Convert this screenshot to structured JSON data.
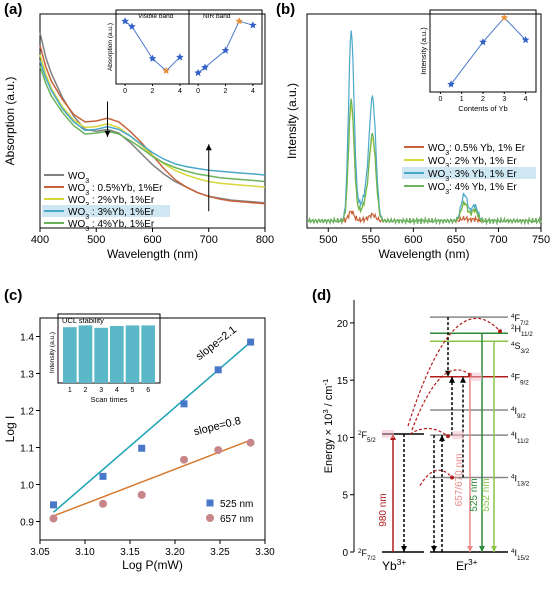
{
  "colors": {
    "wo3": "#808080",
    "yb05": "#c8623a",
    "yb2": "#d6d83c",
    "yb3": "#4aa8c9",
    "yb4": "#6bb35a",
    "star": "#3060c8",
    "star_highlight": "#e8913a",
    "fit_a": "#1ba2b5",
    "fit_b": "#d67a2e",
    "sq": "#4a78c8",
    "circ": "#c9868a",
    "bar": "#5bb8c9",
    "highlight": "#cfe7f3",
    "red": "#b01c1c",
    "green": "#2b8a3a",
    "pink": "#e88a8a",
    "lightgreen": "#8bc34a"
  },
  "chart_data": [
    {
      "id": "a",
      "panel_label": "(a)",
      "type": "line",
      "xlabel": "Wavelength (nm)",
      "ylabel": "Absorption (a.u.)",
      "xlim": [
        400,
        800
      ],
      "xticks": [
        400,
        500,
        600,
        700,
        800
      ],
      "xtick_labels": [
        "400",
        "500",
        "600",
        "700",
        "800"
      ],
      "legend": [
        {
          "text": "WO",
          "sub": "3",
          "rest": "",
          "color_key": "wo3"
        },
        {
          "text": "WO",
          "sub": "3",
          "rest": " : 0.5%Yb, 1%Er",
          "color_key": "yb05"
        },
        {
          "text": "WO",
          "sub": "3",
          "rest": " : 2%Yb, 1%Er",
          "color_key": "yb2"
        },
        {
          "text": "WO",
          "sub": "3",
          "rest": " : 3%Yb, 1%Er",
          "color_key": "yb3",
          "highlight": true
        },
        {
          "text": "WO",
          "sub": "3",
          "rest": " : 4%Yb, 1%Er",
          "color_key": "yb4"
        }
      ],
      "series": [
        {
          "name": "WO3",
          "color_key": "wo3",
          "x": [
            400,
            410,
            420,
            440,
            460,
            480,
            500,
            520,
            540,
            560,
            580,
            600,
            620,
            640,
            660,
            680,
            700,
            720,
            740,
            760,
            780,
            800
          ],
          "y": [
            10.5,
            9.2,
            8.3,
            7.0,
            6.0,
            5.3,
            5.2,
            5.3,
            5.1,
            4.6,
            4.0,
            3.4,
            2.9,
            2.5,
            2.2,
            1.9,
            1.7,
            1.6,
            1.5,
            1.45,
            1.4,
            1.35
          ]
        },
        {
          "name": "WO3 : 0.5%Yb, 1%Er",
          "color_key": "yb05",
          "x": [
            400,
            410,
            420,
            440,
            460,
            480,
            500,
            520,
            540,
            560,
            580,
            600,
            620,
            640,
            660,
            680,
            700,
            720,
            740,
            760,
            780,
            800
          ],
          "y": [
            9.8,
            8.7,
            7.9,
            6.9,
            6.1,
            5.7,
            5.75,
            5.9,
            5.7,
            5.2,
            4.6,
            3.9,
            3.2,
            2.6,
            2.2,
            1.9,
            1.7,
            1.55,
            1.45,
            1.4,
            1.35,
            1.3
          ]
        },
        {
          "name": "WO3 : 2%Yb, 1%Er",
          "color_key": "yb2",
          "x": [
            400,
            410,
            420,
            440,
            460,
            480,
            500,
            520,
            540,
            560,
            580,
            600,
            620,
            640,
            660,
            680,
            700,
            720,
            740,
            760,
            780,
            800
          ],
          "y": [
            9.3,
            8.3,
            7.5,
            6.5,
            5.8,
            5.4,
            5.45,
            5.6,
            5.4,
            4.95,
            4.45,
            3.9,
            3.45,
            3.1,
            2.85,
            2.65,
            2.5,
            2.4,
            2.35,
            2.3,
            2.25,
            2.2
          ]
        },
        {
          "name": "WO3 : 3%Yb, 1%Er",
          "color_key": "yb3",
          "x": [
            400,
            410,
            420,
            440,
            460,
            480,
            500,
            520,
            540,
            560,
            580,
            600,
            620,
            640,
            660,
            680,
            700,
            720,
            740,
            760,
            780,
            800
          ],
          "y": [
            9.0,
            8.1,
            7.4,
            6.4,
            5.7,
            5.25,
            5.3,
            5.45,
            5.3,
            4.95,
            4.5,
            4.05,
            3.7,
            3.45,
            3.3,
            3.2,
            3.1,
            3.05,
            3.0,
            2.95,
            2.9,
            2.85
          ]
        },
        {
          "name": "WO3 : 4%Yb, 1%Er",
          "color_key": "yb4",
          "x": [
            400,
            410,
            420,
            440,
            460,
            480,
            500,
            520,
            540,
            560,
            580,
            600,
            620,
            640,
            660,
            680,
            700,
            720,
            740,
            760,
            780,
            800
          ],
          "y": [
            8.7,
            7.8,
            7.1,
            6.2,
            5.5,
            5.05,
            5.1,
            5.2,
            5.05,
            4.7,
            4.3,
            3.85,
            3.5,
            3.25,
            3.05,
            2.9,
            2.8,
            2.7,
            2.65,
            2.6,
            2.55,
            2.5
          ]
        }
      ],
      "ylim": [
        0,
        11.5
      ],
      "arrows": [
        {
          "direction": "down",
          "x": 520,
          "y_from": 6.8,
          "y_to": 4.9
        },
        {
          "direction": "up",
          "x": 700,
          "y_from": 0.9,
          "y_to": 4.5
        }
      ],
      "inset": {
        "type": "scatter-line",
        "ylabel": "Absorption (a.u.)",
        "xlabel": "",
        "band_labels": [
          "Visible band",
          "NIR band"
        ],
        "xlim": [
          -0.3,
          4.3
        ],
        "xticks": [
          0,
          2,
          4
        ],
        "xtick_labels": [
          "0",
          "2",
          "4"
        ],
        "ylim": [
          0,
          1
        ],
        "left": {
          "x": [
            0,
            0.5,
            2,
            3,
            4
          ],
          "y": [
            0.88,
            0.8,
            0.33,
            0.15,
            0.35
          ],
          "highlight_index": 3
        },
        "right": {
          "x": [
            0,
            0.5,
            2,
            3,
            4
          ],
          "y": [
            0.12,
            0.2,
            0.45,
            0.88,
            0.82
          ],
          "highlight_index": 3
        }
      }
    },
    {
      "id": "b",
      "panel_label": "(b)",
      "type": "line",
      "xlabel": "Wavelength (nm)",
      "ylabel": "Intensity (a.u.)",
      "xlim": [
        475,
        750
      ],
      "xticks": [
        500,
        550,
        600,
        650,
        700,
        750
      ],
      "xtick_labels": [
        "500",
        "550",
        "600",
        "650",
        "700",
        "750"
      ],
      "ylim": [
        0,
        1.05
      ],
      "legend": [
        {
          "text": "WO",
          "sub": "3",
          "rest": ": 0.5% Yb, 1% Er",
          "color_key": "yb05"
        },
        {
          "text": "WO",
          "sub": "3",
          "rest": ": 2% Yb, 1% Er",
          "color_key": "yb2"
        },
        {
          "text": "WO",
          "sub": "3",
          "rest": ": 3% Yb, 1% Er",
          "color_key": "yb3",
          "highlight": true
        },
        {
          "text": "WO",
          "sub": "3",
          "rest": ": 4% Yb, 1% Er",
          "color_key": "yb4"
        }
      ],
      "series": [
        {
          "name": "WO3: 0.5% Yb, 1% Er",
          "color_key": "yb05",
          "peaks": [
            0.045,
            0.03,
            0.012,
            0.008
          ]
        },
        {
          "name": "WO3: 2% Yb, 1% Er",
          "color_key": "yb2",
          "peaks": [
            0.56,
            0.4,
            0.085,
            0.05
          ]
        },
        {
          "name": "WO3: 3% Yb, 1% Er",
          "color_key": "yb3",
          "peaks": [
            0.92,
            0.6,
            0.13,
            0.075
          ]
        },
        {
          "name": "WO3: 4% Yb, 1% Er",
          "color_key": "yb4",
          "peaks": [
            0.59,
            0.42,
            0.09,
            0.055
          ]
        }
      ],
      "peak_positions": [
        527,
        552,
        660,
        672
      ],
      "inset": {
        "type": "scatter-line",
        "ylabel": "Intensity (a.u.)",
        "xlabel": "Contents of Yb",
        "xlim": [
          -0.3,
          4.3
        ],
        "xticks": [
          0,
          1,
          2,
          3,
          4
        ],
        "xtick_labels": [
          "0",
          "1",
          "2",
          "3",
          "4"
        ],
        "ylim": [
          0,
          1
        ],
        "x": [
          0.5,
          2,
          3,
          4
        ],
        "y": [
          0.05,
          0.62,
          0.95,
          0.65
        ],
        "highlight_index": 2
      }
    },
    {
      "id": "c",
      "panel_label": "(c)",
      "type": "scatter",
      "xlabel": "Log P(mW)",
      "ylabel": "Log I",
      "xlim": [
        3.05,
        3.3
      ],
      "ylim": [
        0.85,
        1.45
      ],
      "xticks": [
        3.05,
        3.1,
        3.15,
        3.2,
        3.25,
        3.3
      ],
      "xtick_labels": [
        "3.05",
        "3.10",
        "3.15",
        "3.20",
        "3.25",
        "3.30"
      ],
      "yticks": [
        0.9,
        1.0,
        1.1,
        1.2,
        1.3,
        1.4
      ],
      "ytick_labels": [
        "0.9",
        "1.0",
        "1.1",
        "1.2",
        "1.3",
        "1.4"
      ],
      "series": [
        {
          "name": "525 nm",
          "marker": "square",
          "color_key": "sq",
          "x": [
            3.065,
            3.12,
            3.163,
            3.21,
            3.248,
            3.284
          ],
          "y": [
            0.945,
            1.022,
            1.098,
            1.218,
            1.31,
            1.385
          ],
          "fit": [
            [
              3.065,
              0.925
            ],
            [
              3.284,
              1.385
            ]
          ],
          "slope_label": "slope=2.1"
        },
        {
          "name": "657 nm",
          "marker": "circle",
          "color_key": "circ",
          "x": [
            3.065,
            3.12,
            3.163,
            3.21,
            3.248,
            3.284
          ],
          "y": [
            0.908,
            0.948,
            0.972,
            1.067,
            1.093,
            1.113
          ],
          "fit": [
            [
              3.065,
              0.915
            ],
            [
              3.284,
              1.12
            ]
          ],
          "slope_label": "slope=0.8"
        }
      ],
      "inset": {
        "type": "bar",
        "title": "UCL stability",
        "ylabel": "Intensity (a.u.)",
        "xlabel": "Scan times",
        "categories": [
          "1",
          "2",
          "3",
          "4",
          "5",
          "6"
        ],
        "values": [
          0.93,
          0.96,
          0.92,
          0.95,
          0.96,
          0.96
        ],
        "ylim": [
          0,
          1.1
        ]
      }
    },
    {
      "id": "d",
      "panel_label": "(d)",
      "type": "diagram",
      "ylabel": "Energy × 10",
      "ylabel_sup": "3",
      "ylabel_unit": " / cm",
      "ylabel_unit_sup": "-1",
      "ylim": [
        0,
        22
      ],
      "yticks": [
        0,
        5,
        10,
        15,
        20
      ],
      "ytick_labels": [
        "0",
        "5",
        "10",
        "15",
        "20"
      ],
      "yb_label": "Yb",
      "yb_sup": "3+",
      "er_label": "Er",
      "er_sup": "3+",
      "yb_levels": [
        {
          "energy": 0,
          "label": "F",
          "sup": "2",
          "sub": "7/2"
        },
        {
          "energy": 10.3,
          "label": "F",
          "sup": "2",
          "sub": "5/2"
        }
      ],
      "er_levels": [
        {
          "energy": 0,
          "label": "I",
          "sup": "4",
          "sub": "15/2"
        },
        {
          "energy": 6.5,
          "label": "I",
          "sup": "4",
          "sub": "13/2"
        },
        {
          "energy": 10.2,
          "label": "I",
          "sup": "4",
          "sub": "11/2"
        },
        {
          "energy": 12.4,
          "label": "I",
          "sup": "4",
          "sub": "9/2"
        },
        {
          "energy": 15.3,
          "label": "F",
          "sup": "4",
          "sub": "9/2"
        },
        {
          "energy": 18.4,
          "label": "S",
          "sup": "4",
          "sub": "3/2"
        },
        {
          "energy": 19.1,
          "label": "H",
          "sup": "2",
          "sub": "11/2"
        },
        {
          "energy": 20.5,
          "label": "F",
          "sup": "4",
          "sub": "7/2"
        }
      ],
      "transitions": [
        {
          "label": "980 nm",
          "color_key": "red"
        },
        {
          "label": "657/670 nm",
          "color_key": "pink"
        },
        {
          "label": "525 nm",
          "color_key": "green"
        },
        {
          "label": "552 nm",
          "color_key": "lightgreen"
        }
      ]
    }
  ]
}
